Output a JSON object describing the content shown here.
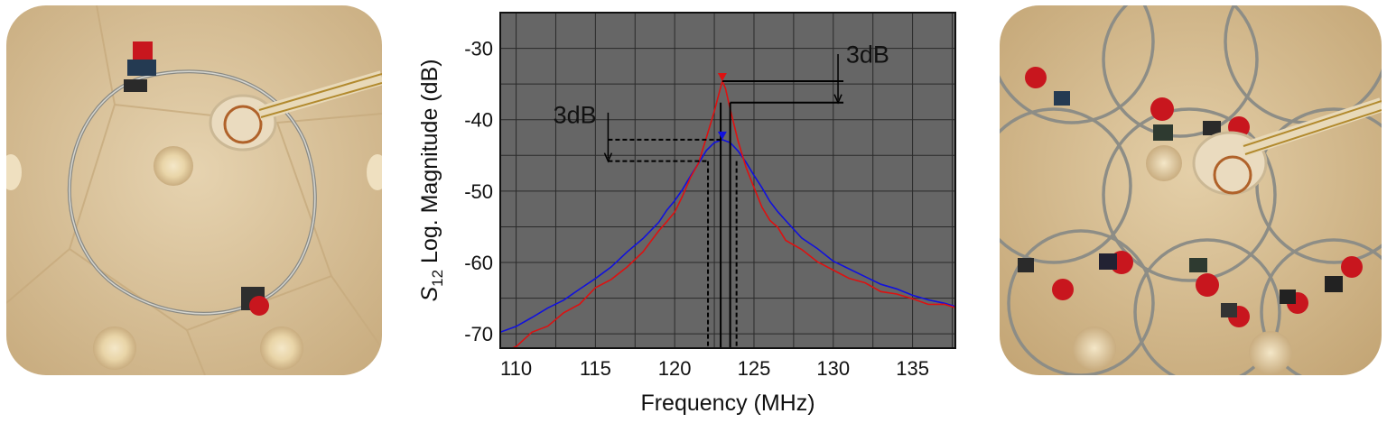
{
  "chart_data": {
    "type": "line",
    "xlabel": "Frequency (MHz)",
    "ylabel": {
      "symbol": "S",
      "subscript": "12",
      "rest": " Log. Magnitude (dB)"
    },
    "xlim": [
      109,
      137.7
    ],
    "ylim": [
      -72,
      -25
    ],
    "x_ticks": [
      110,
      115,
      120,
      125,
      130,
      135
    ],
    "y_ticks": [
      -30,
      -40,
      -50,
      -60,
      -70
    ],
    "x_tick_labels": [
      "110",
      "115",
      "120",
      "125",
      "130",
      "135"
    ],
    "y_tick_labels": [
      "-30",
      "-40",
      "-50",
      "-60",
      "-70"
    ],
    "grid": true,
    "plot_background": "#666666",
    "series": [
      {
        "color": "#dd1111",
        "x": [
          109,
          110,
          111,
          112,
          113,
          114,
          115,
          116,
          117,
          118,
          119,
          119.5,
          120,
          120.5,
          121,
          121.5,
          122,
          122.5,
          122.8,
          123.0,
          123.2,
          123.5,
          124,
          124.5,
          125,
          125.5,
          126,
          126.5,
          127,
          128,
          129,
          130,
          131,
          132,
          133,
          134,
          135,
          136,
          137,
          137.7
        ],
        "y": [
          -72.5,
          -71.5,
          -70.2,
          -68.8,
          -67.2,
          -65.6,
          -64,
          -62.3,
          -60.5,
          -58.5,
          -56,
          -54.5,
          -52.8,
          -50.8,
          -48.3,
          -45.6,
          -42.5,
          -38.8,
          -36.3,
          -34.6,
          -35.6,
          -38.5,
          -43,
          -46.8,
          -49.8,
          -52.1,
          -53.9,
          -55.3,
          -56.5,
          -58.4,
          -59.9,
          -61.1,
          -62,
          -62.9,
          -63.6,
          -64.3,
          -64.9,
          -65.4,
          -65.8,
          -66
        ]
      },
      {
        "color": "#1111dd",
        "x": [
          109,
          110,
          111,
          112,
          113,
          114,
          115,
          116,
          117,
          118,
          119,
          119.5,
          120,
          120.5,
          121,
          121.5,
          122,
          122.5,
          123.0,
          123.5,
          124,
          124.5,
          125,
          125.5,
          126,
          126.5,
          127,
          128,
          129,
          130,
          131,
          132,
          133,
          134,
          135,
          136,
          137,
          137.7
        ],
        "y": [
          -69.8,
          -68.8,
          -67.7,
          -66.5,
          -65.2,
          -63.8,
          -62.3,
          -60.6,
          -58.7,
          -56.6,
          -54.2,
          -52.8,
          -51.3,
          -49.7,
          -47.9,
          -46,
          -44.3,
          -43.2,
          -42.8,
          -43.2,
          -44.4,
          -46,
          -47.8,
          -49.6,
          -51.3,
          -52.8,
          -54.1,
          -56.4,
          -58.2,
          -59.7,
          -61,
          -62.1,
          -63,
          -63.8,
          -64.6,
          -65.2,
          -65.7,
          -66.1
        ]
      }
    ],
    "markers": [
      {
        "x": 123.0,
        "y": -34.6,
        "color": "#dd1111"
      },
      {
        "x": 123.0,
        "y": -42.8,
        "color": "#1111dd"
      }
    ],
    "annotations": [
      {
        "label": "3dB",
        "style": "solid",
        "top_y": -34.6,
        "bottom_y": -37.6,
        "bandwidth_x": [
          122.9,
          123.5
        ],
        "arrow_x": 130.3,
        "label_x": 130.8,
        "label_y": -32
      },
      {
        "label": "3dB",
        "style": "dashed",
        "top_y": -42.8,
        "bottom_y": -45.8,
        "bandwidth_x": [
          122.1,
          123.9
        ],
        "arrow_x": 115.8,
        "label_x": 115.3,
        "label_y": -40.5
      }
    ]
  },
  "photos": {
    "left": {
      "description_icon": "single-loop-coil-photo-icon"
    },
    "right": {
      "description_icon": "coil-array-photo-icon"
    }
  }
}
